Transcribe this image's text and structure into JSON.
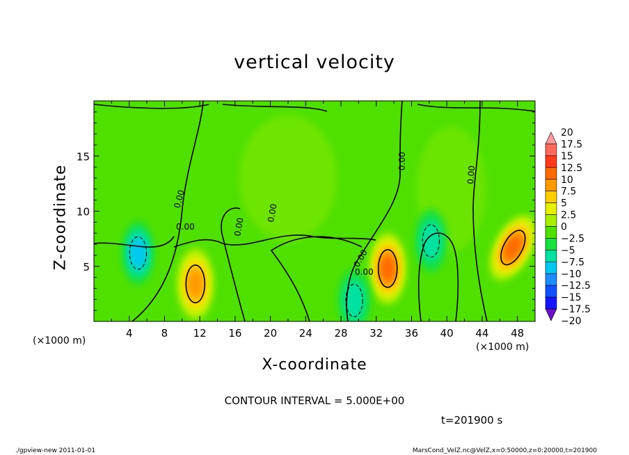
{
  "chart_data": {
    "type": "heatmap",
    "title": "vertical velocity",
    "xlabel": "X-coordinate",
    "ylabel": "Z-coordinate",
    "x_unit_label": "(×1000 m)",
    "xlim": [
      0,
      50
    ],
    "ylim": [
      0,
      20
    ],
    "xticks": [
      4,
      8,
      12,
      16,
      20,
      24,
      28,
      32,
      36,
      40,
      44,
      48
    ],
    "yticks": [
      5,
      10,
      15
    ],
    "contour_interval_label": "CONTOUR INTERVAL = 5.000E+00",
    "contour_labels": [
      "0.00",
      "0.00",
      "0.00",
      "0.00",
      "0.00",
      "0.00",
      "0.00",
      "0.00"
    ],
    "colorbar": {
      "levels": [
        20,
        17.5,
        15,
        12.5,
        10,
        7.5,
        5,
        2.5,
        0,
        -2.5,
        -5,
        -7.5,
        -10,
        -12.5,
        -15,
        -17.5,
        -20
      ],
      "colors": [
        "#ff9aa0",
        "#ff6a5c",
        "#ff3a1a",
        "#ff6a00",
        "#ff9a00",
        "#ffce00",
        "#e6f000",
        "#a8f000",
        "#50e000",
        "#18e040",
        "#00e0a0",
        "#00c8f0",
        "#1c8cff",
        "#1050ff",
        "#1414ff",
        "#2010d0",
        "#6a10c8"
      ]
    },
    "features": [
      {
        "kind": "updraft",
        "x": 33.3,
        "z": 4.8,
        "peak": 12.5
      },
      {
        "kind": "updraft",
        "x": 47.5,
        "z": 6.7,
        "peak": 12.5
      },
      {
        "kind": "updraft",
        "x": 11.5,
        "z": 3.4,
        "peak": 10
      },
      {
        "kind": "downdraft",
        "x": 5,
        "z": 6.2,
        "peak": -7.5
      },
      {
        "kind": "downdraft",
        "x": 38.2,
        "z": 7.3,
        "peak": -5
      },
      {
        "kind": "downdraft",
        "x": 29.5,
        "z": 1.9,
        "peak": -5
      }
    ]
  },
  "time_label": "t=201900 s",
  "footer": {
    "left": "./gpview-new  2011-01-01",
    "right": "MarsCond_VelZ.nc@VelZ,x=0:50000,z=0:20000,t=201900"
  }
}
